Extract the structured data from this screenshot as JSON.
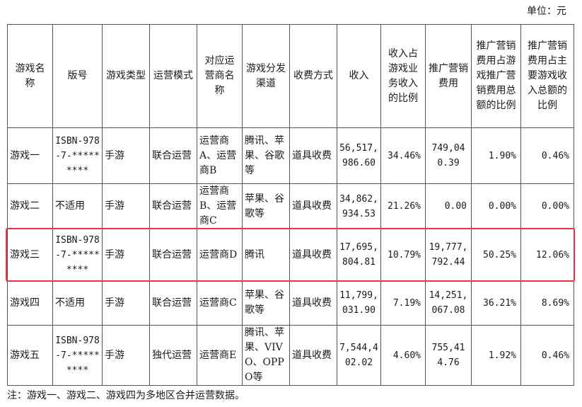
{
  "unit": "单位：元",
  "headers": [
    "游戏名称",
    "版号",
    "游戏类型",
    "运营模式",
    "对应运营商名称",
    "游戏分发渠道",
    "收费方式",
    "收入",
    "收入占游戏业务收入的比例",
    "推广营销费用",
    "推广营销费用占游戏推广营销费用总额的比例",
    "推广营销费用占主要游戏收入总额的比例"
  ],
  "rows": [
    {
      "name": "游戏一",
      "isbn": "ISBN-978-7-*********",
      "type": "手游",
      "mode": "联合运营",
      "operator": "运营商A、运营商B",
      "channel": "腾讯、苹果、谷歌等",
      "fee": "道具收费",
      "revenue": "56,517,986.60",
      "revenue_ratio": "34.46%",
      "promo": "749,040.39",
      "promo_ratio": "1.90%",
      "promo_rev_ratio": "0.46%"
    },
    {
      "name": "游戏二",
      "isbn": "不适用",
      "type": "手游",
      "mode": "联合运营",
      "operator": "运营商B、运营商C",
      "channel": "苹果、谷歌等",
      "fee": "道具收费",
      "revenue": "34,862,934.53",
      "revenue_ratio": "21.26%",
      "promo": "0.00",
      "promo_ratio": "0.00%",
      "promo_rev_ratio": "0.00%"
    },
    {
      "name": "游戏三",
      "isbn": "ISBN-978-7-*********",
      "type": "手游",
      "mode": "联合运营",
      "operator": "运营商D",
      "channel": "腾讯",
      "fee": "道具收费",
      "revenue": "17,695,804.81",
      "revenue_ratio": "10.79%",
      "promo": "19,777,792.44",
      "promo_ratio": "50.25%",
      "promo_rev_ratio": "12.06%"
    },
    {
      "name": "游戏四",
      "isbn": "不适用",
      "type": "手游",
      "mode": "联合运营",
      "operator": "运营商C",
      "channel": "苹果、谷歌等",
      "fee": "道具收费",
      "revenue": "11,799,031.90",
      "revenue_ratio": "7.19%",
      "promo": "14,251,067.08",
      "promo_ratio": "36.21%",
      "promo_rev_ratio": "8.69%"
    },
    {
      "name": "游戏五",
      "isbn": "ISBN-978-7-*********",
      "type": "手游",
      "mode": "独代运营",
      "operator": "运营商E",
      "channel": "腾讯、苹果、VIVO、OPPO等",
      "fee": "道具收费",
      "revenue": "7,544,402.02",
      "revenue_ratio": "4.60%",
      "promo": "755,414.76",
      "promo_ratio": "1.92%",
      "promo_rev_ratio": "0.46%"
    }
  ],
  "note": "注：游戏一、游戏二、游戏四为多地区合并运营数据。",
  "colors": {
    "highlight_border": "#e8343a",
    "grid": "#555555"
  }
}
